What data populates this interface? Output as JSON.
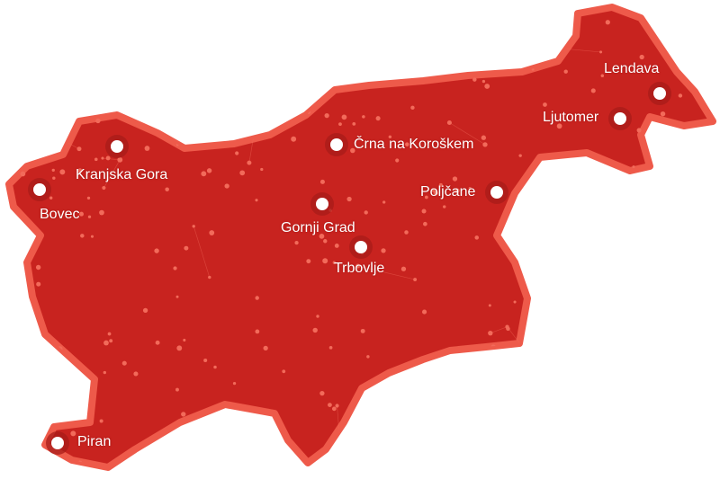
{
  "colors": {
    "fill": "#c8231f",
    "border": "#ee5a4a",
    "node": "#f26a5a",
    "marker_ring": "#a81c1a",
    "marker_dot": "#ffffff"
  },
  "cities": [
    {
      "name": "Bovec",
      "marker_icon": "location-dot-icon"
    },
    {
      "name": "Kranjska Gora",
      "marker_icon": "location-dot-icon"
    },
    {
      "name": "Črna na Koroškem",
      "marker_icon": "location-dot-icon"
    },
    {
      "name": "Gornji Grad",
      "marker_icon": "location-dot-icon"
    },
    {
      "name": "Trbovlje",
      "marker_icon": "location-dot-icon"
    },
    {
      "name": "Poljčane",
      "marker_icon": "location-dot-icon"
    },
    {
      "name": "Ljutomer",
      "marker_icon": "location-dot-icon"
    },
    {
      "name": "Lendava",
      "marker_icon": "location-dot-icon"
    },
    {
      "name": "Piran",
      "marker_icon": "location-dot-icon"
    }
  ]
}
